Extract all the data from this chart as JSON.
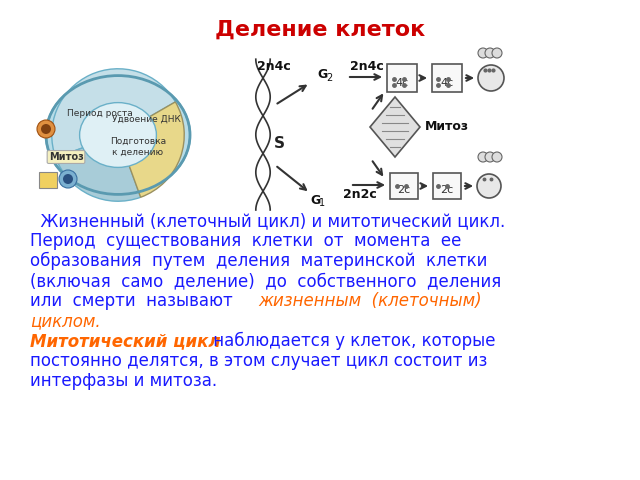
{
  "title": "Деление клеток",
  "title_color": "#cc0000",
  "title_fontsize": 16,
  "title_weight": "bold",
  "bg_color": "#ffffff",
  "blue_color": "#1a1aff",
  "orange_color": "#ff6600",
  "text_fontsize": 12,
  "left_image_label_1": "Период роста",
  "left_image_label_2": "Удвоение ДНК",
  "left_image_label_3": "Подготовка\nк делению",
  "left_image_label_4": "Митоз"
}
